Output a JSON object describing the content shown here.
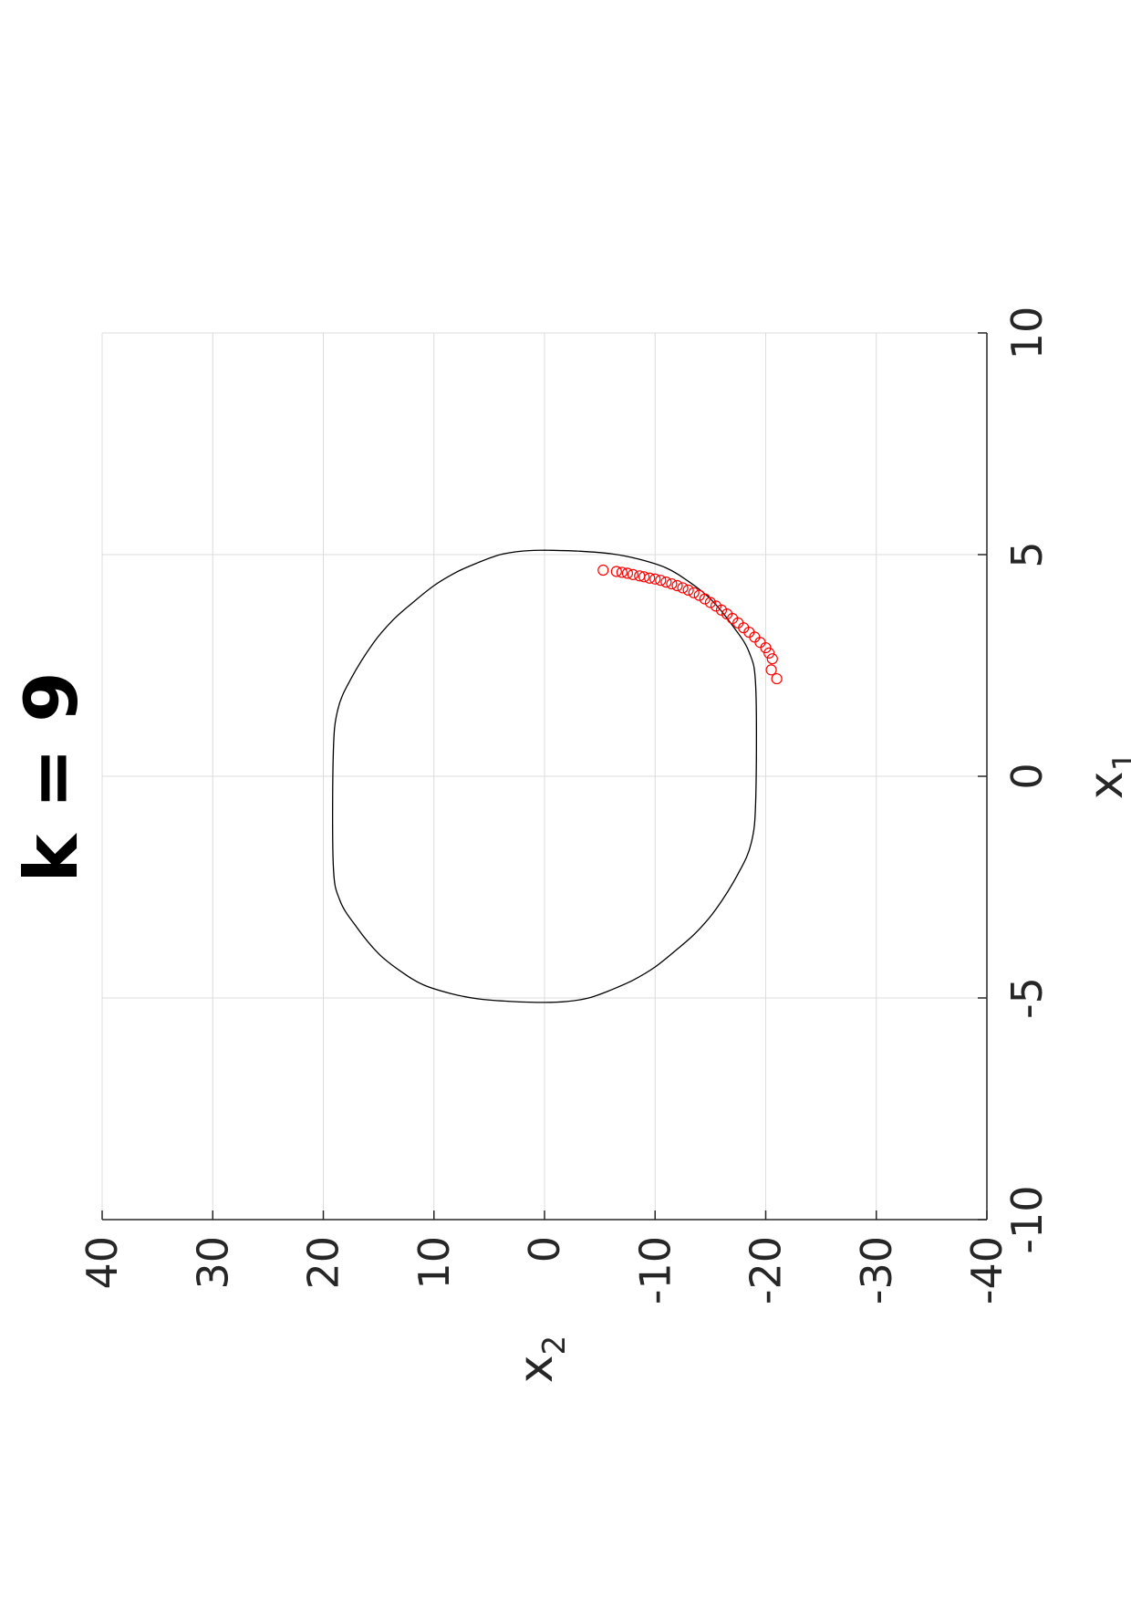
{
  "chart_data": {
    "type": "scatter",
    "title": "k = 9",
    "xlabel": "x",
    "xlabel_sub": "1",
    "ylabel": "x",
    "ylabel_sub": "2",
    "xlim": [
      -10,
      10
    ],
    "ylim": [
      -40,
      40
    ],
    "xticks": [
      -10,
      -5,
      0,
      5,
      10
    ],
    "yticks": [
      40,
      30,
      20,
      10,
      0,
      -10,
      -20,
      -30,
      -40
    ],
    "grid": true,
    "orientation": "rotated-90-clockwise",
    "series": [
      {
        "kind": "closed-curve",
        "color": "#000000",
        "points": [
          [
            5.1,
            0
          ],
          [
            5.08,
            2
          ],
          [
            5.0,
            4
          ],
          [
            4.82,
            6
          ],
          [
            4.6,
            8
          ],
          [
            4.3,
            10
          ],
          [
            3.9,
            12
          ],
          [
            3.5,
            13.8
          ],
          [
            3.0,
            15.5
          ],
          [
            2.2,
            17.5
          ],
          [
            1.5,
            18.7
          ],
          [
            0.5,
            19.1
          ],
          [
            -2.0,
            19.1
          ],
          [
            -2.8,
            18.5
          ],
          [
            -3.4,
            17.0
          ],
          [
            -4.0,
            15.0
          ],
          [
            -4.4,
            13.0
          ],
          [
            -4.7,
            11.0
          ],
          [
            -4.9,
            8.5
          ],
          [
            -5.02,
            6.0
          ],
          [
            -5.08,
            3.0
          ],
          [
            -5.1,
            0
          ],
          [
            -5.08,
            -2
          ],
          [
            -5.0,
            -4
          ],
          [
            -4.82,
            -6
          ],
          [
            -4.6,
            -8
          ],
          [
            -4.3,
            -10
          ],
          [
            -3.9,
            -12
          ],
          [
            -3.5,
            -13.8
          ],
          [
            -3.0,
            -15.5
          ],
          [
            -2.2,
            -17.5
          ],
          [
            -1.5,
            -18.7
          ],
          [
            -0.5,
            -19.1
          ],
          [
            2.0,
            -19.1
          ],
          [
            2.8,
            -18.5
          ],
          [
            3.4,
            -17.0
          ],
          [
            4.0,
            -15.0
          ],
          [
            4.4,
            -13.0
          ],
          [
            4.7,
            -11.0
          ],
          [
            4.9,
            -8.5
          ],
          [
            5.02,
            -6.0
          ],
          [
            5.08,
            -3.0
          ],
          [
            5.1,
            0
          ]
        ]
      },
      {
        "kind": "markers",
        "marker": "circle",
        "color": "#ff0000",
        "points": [
          [
            4.65,
            -5.3
          ],
          [
            4.62,
            -6.5
          ],
          [
            4.6,
            -7.0
          ],
          [
            4.58,
            -7.5
          ],
          [
            4.55,
            -8.0
          ],
          [
            4.52,
            -8.6
          ],
          [
            4.5,
            -9.0
          ],
          [
            4.47,
            -9.5
          ],
          [
            4.45,
            -10.0
          ],
          [
            4.42,
            -10.5
          ],
          [
            4.38,
            -11.0
          ],
          [
            4.34,
            -11.5
          ],
          [
            4.3,
            -12.0
          ],
          [
            4.25,
            -12.5
          ],
          [
            4.2,
            -13.0
          ],
          [
            4.14,
            -13.5
          ],
          [
            4.08,
            -14.0
          ],
          [
            4.0,
            -14.5
          ],
          [
            3.92,
            -15.0
          ],
          [
            3.84,
            -15.5
          ],
          [
            3.75,
            -16.0
          ],
          [
            3.66,
            -16.5
          ],
          [
            3.56,
            -17.0
          ],
          [
            3.46,
            -17.5
          ],
          [
            3.35,
            -18.0
          ],
          [
            3.25,
            -18.5
          ],
          [
            3.14,
            -19.0
          ],
          [
            3.02,
            -19.5
          ],
          [
            2.9,
            -20.0
          ],
          [
            2.78,
            -20.3
          ],
          [
            2.65,
            -20.6
          ],
          [
            2.4,
            -20.5
          ],
          [
            2.2,
            -21.0
          ]
        ]
      }
    ]
  }
}
